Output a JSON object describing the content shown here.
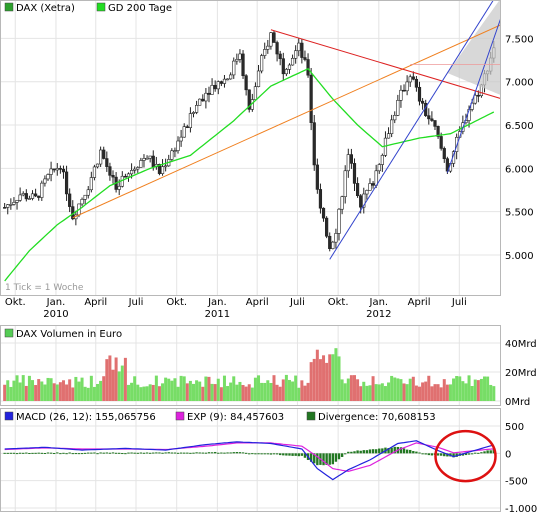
{
  "chart_data": [
    {
      "type": "candlestick",
      "legend": [
        {
          "label": "DAX (Xetra)",
          "color": "#2ca02c"
        },
        {
          "label": "GD 200 Tage",
          "color": "#22dd22"
        }
      ],
      "note": "1 Tick = 1 Woche",
      "x_tick_labels": [
        "Okt.",
        "Jan.",
        "April",
        "Juli",
        "Okt.",
        "Jan.",
        "April",
        "Juli",
        "Okt.",
        "Jan.",
        "April",
        "Juli"
      ],
      "year_labels": [
        "2010",
        "2011",
        "2012"
      ],
      "y_ticks": [
        5000,
        5500,
        6000,
        6500,
        7000,
        7500
      ],
      "y_tick_labels": [
        "5.000",
        "5.500",
        "6.000",
        "6.500",
        "7.000",
        "7.500"
      ],
      "ylim": [
        4550,
        7920
      ],
      "x_range": [
        "2009-09",
        "2012-09"
      ],
      "price_path": [
        [
          "2009-09-07",
          5550
        ],
        [
          "2009-10-12",
          5700
        ],
        [
          "2009-11-16",
          5650
        ],
        [
          "2009-12-14",
          5900
        ],
        [
          "2010-01-11",
          6050
        ],
        [
          "2010-02-08",
          5450
        ],
        [
          "2010-03-15",
          5800
        ],
        [
          "2010-04-12",
          6200
        ],
        [
          "2010-05-17",
          5750
        ],
        [
          "2010-06-21",
          6000
        ],
        [
          "2010-07-26",
          6150
        ],
        [
          "2010-08-23",
          5950
        ],
        [
          "2010-09-27",
          6250
        ],
        [
          "2010-10-25",
          6500
        ],
        [
          "2010-11-22",
          6800
        ],
        [
          "2010-12-20",
          6950
        ],
        [
          "2011-01-24",
          7050
        ],
        [
          "2011-02-21",
          7350
        ],
        [
          "2011-03-14",
          6650
        ],
        [
          "2011-04-11",
          7250
        ],
        [
          "2011-05-02",
          7550
        ],
        [
          "2011-05-30",
          7150
        ],
        [
          "2011-07-04",
          7400
        ],
        [
          "2011-07-25",
          7100
        ],
        [
          "2011-08-08",
          6000
        ],
        [
          "2011-08-22",
          5500
        ],
        [
          "2011-09-12",
          5100
        ],
        [
          "2011-09-26",
          5300
        ],
        [
          "2011-10-24",
          6150
        ],
        [
          "2011-11-21",
          5600
        ],
        [
          "2011-12-19",
          5850
        ],
        [
          "2012-01-23",
          6450
        ],
        [
          "2012-02-20",
          6850
        ],
        [
          "2012-03-12",
          7100
        ],
        [
          "2012-04-09",
          6700
        ],
        [
          "2012-05-07",
          6450
        ],
        [
          "2012-06-04",
          6000
        ],
        [
          "2012-06-25",
          6300
        ],
        [
          "2012-07-23",
          6700
        ],
        [
          "2012-08-20",
          6950
        ],
        [
          "2012-09-17",
          7400
        ]
      ],
      "gd200_path": [
        [
          "2009-09-07",
          4700
        ],
        [
          "2009-11-02",
          5050
        ],
        [
          "2010-01-04",
          5350
        ],
        [
          "2010-03-01",
          5550
        ],
        [
          "2010-05-03",
          5800
        ],
        [
          "2010-08-02",
          6000
        ],
        [
          "2010-11-01",
          6150
        ],
        [
          "2011-02-07",
          6550
        ],
        [
          "2011-05-02",
          6950
        ],
        [
          "2011-07-25",
          7150
        ],
        [
          "2011-09-19",
          6800
        ],
        [
          "2011-11-14",
          6500
        ],
        [
          "2012-01-09",
          6250
        ],
        [
          "2012-04-02",
          6350
        ],
        [
          "2012-06-11",
          6400
        ],
        [
          "2012-09-17",
          6650
        ]
      ],
      "trend_lines": [
        {
          "name": "uptrend",
          "color": "#f08020",
          "from": [
            "2010-02-08",
            5430
          ],
          "to": [
            "2012-09-17",
            7620
          ]
        },
        {
          "name": "downtrend",
          "color": "#dd2222",
          "from": [
            "2011-05-02",
            7600
          ],
          "to": [
            "2012-09-17",
            6830
          ]
        },
        {
          "name": "channel-lower",
          "color": "#3344cc",
          "from": [
            "2011-09-12",
            4950
          ],
          "to": [
            "2012-09-17",
            7950
          ]
        },
        {
          "name": "channel-upper",
          "color": "#3344cc",
          "from": [
            "2012-06-04",
            5950
          ],
          "to": [
            "2012-09-17",
            7500
          ]
        }
      ],
      "resistance_level": 7200
    },
    {
      "type": "bar",
      "title": "DAX Volumen in Euro",
      "legend_color": "#55cc55",
      "y_tick_labels": [
        "40Mrd",
        "20Mrd",
        "0Mrd"
      ],
      "y_ticks": [
        40,
        20,
        0
      ],
      "ylim": [
        0,
        40
      ],
      "unit": "Mrd",
      "note": "weekly volume, colored red on down weeks and green on up weeks"
    },
    {
      "type": "line",
      "legend": [
        {
          "label": "MACD (26, 12): 155,065756",
          "color": "#2222dd"
        },
        {
          "label": "EXP (9): 84,457603",
          "color": "#dd22dd"
        },
        {
          "label": "Divergence: 70,608153",
          "color": "#227722"
        }
      ],
      "y_ticks": [
        500,
        0,
        -500,
        -1000
      ],
      "y_tick_labels": [
        "500",
        "0",
        "-500",
        "-1.000"
      ],
      "ylim": [
        -1000,
        500
      ],
      "macd_path": [
        [
          "2009-09-07",
          80
        ],
        [
          "2009-12-07",
          110
        ],
        [
          "2010-03-01",
          60
        ],
        [
          "2010-06-07",
          90
        ],
        [
          "2010-09-06",
          60
        ],
        [
          "2010-12-06",
          160
        ],
        [
          "2011-02-14",
          210
        ],
        [
          "2011-05-02",
          180
        ],
        [
          "2011-07-11",
          80
        ],
        [
          "2011-08-15",
          -280
        ],
        [
          "2011-09-19",
          -480
        ],
        [
          "2011-10-24",
          -300
        ],
        [
          "2011-12-12",
          -120
        ],
        [
          "2012-02-13",
          180
        ],
        [
          "2012-03-26",
          230
        ],
        [
          "2012-05-14",
          50
        ],
        [
          "2012-06-18",
          -60
        ],
        [
          "2012-09-17",
          155
        ]
      ],
      "exp_path": [
        [
          "2009-09-07",
          70
        ],
        [
          "2009-12-07",
          100
        ],
        [
          "2010-03-01",
          80
        ],
        [
          "2010-06-07",
          80
        ],
        [
          "2010-09-06",
          70
        ],
        [
          "2010-12-06",
          130
        ],
        [
          "2011-02-14",
          190
        ],
        [
          "2011-05-02",
          190
        ],
        [
          "2011-07-11",
          130
        ],
        [
          "2011-08-15",
          -60
        ],
        [
          "2011-09-19",
          -280
        ],
        [
          "2011-10-24",
          -330
        ],
        [
          "2011-12-12",
          -220
        ],
        [
          "2012-02-13",
          60
        ],
        [
          "2012-03-26",
          190
        ],
        [
          "2012-05-14",
          110
        ],
        [
          "2012-06-18",
          10
        ],
        [
          "2012-09-17",
          84
        ]
      ],
      "divergence_path": [
        [
          "2009-09-07",
          10
        ],
        [
          "2010-06-07",
          10
        ],
        [
          "2011-02-14",
          20
        ],
        [
          "2011-07-11",
          -50
        ],
        [
          "2011-08-15",
          -220
        ],
        [
          "2011-09-19",
          -200
        ],
        [
          "2011-10-24",
          30
        ],
        [
          "2012-02-13",
          120
        ],
        [
          "2012-04-16",
          -20
        ],
        [
          "2012-06-18",
          -70
        ],
        [
          "2012-09-17",
          70
        ]
      ],
      "highlight": {
        "shape": "ellipse",
        "color": "#dd1111"
      }
    }
  ]
}
